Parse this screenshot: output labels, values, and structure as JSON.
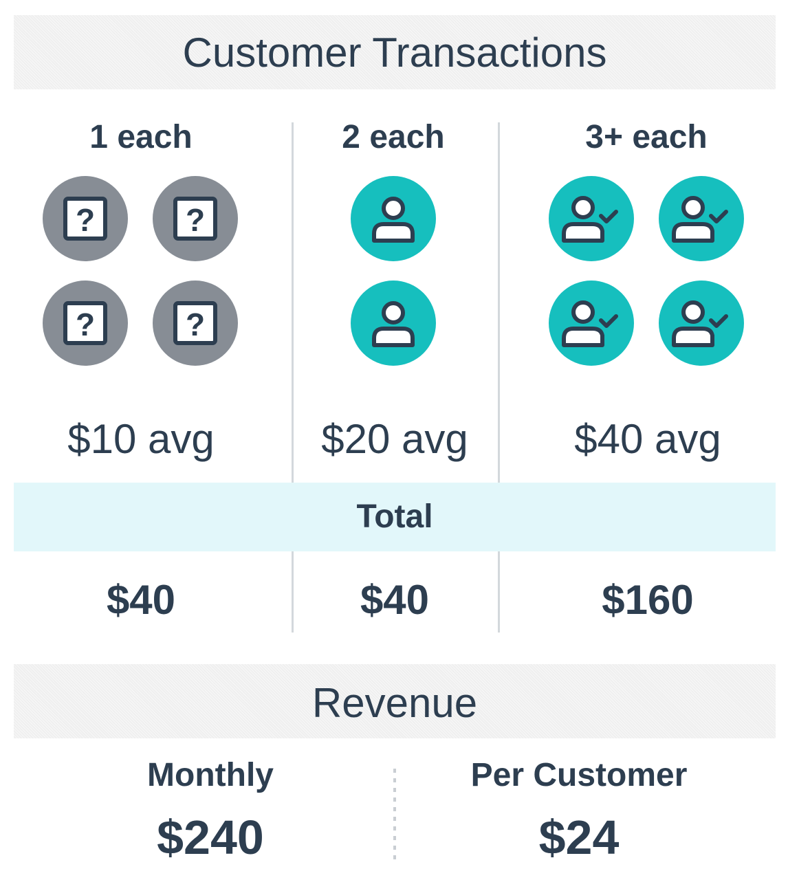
{
  "title": "Customer Transactions",
  "columns": [
    {
      "label": "1 each",
      "avg": "$10 avg",
      "total": "$40",
      "icon": "unknown-customer-icon",
      "icon_count": 4
    },
    {
      "label": "2 each",
      "avg": "$20 avg",
      "total": "$40",
      "icon": "customer-icon",
      "icon_count": 2
    },
    {
      "label": "3+ each",
      "avg": "$40 avg",
      "total": "$160",
      "icon": "verified-customer-icon",
      "icon_count": 4
    }
  ],
  "total_label": "Total",
  "revenue": {
    "title": "Revenue",
    "monthly_label": "Monthly",
    "monthly_value": "$240",
    "per_customer_label": "Per Customer",
    "per_customer_value": "$24"
  },
  "colors": {
    "text": "#2d3e50",
    "teal": "#16bfbe",
    "gray": "#878d95",
    "total_band": "#e2f7fa",
    "header_band": "#efefef"
  }
}
